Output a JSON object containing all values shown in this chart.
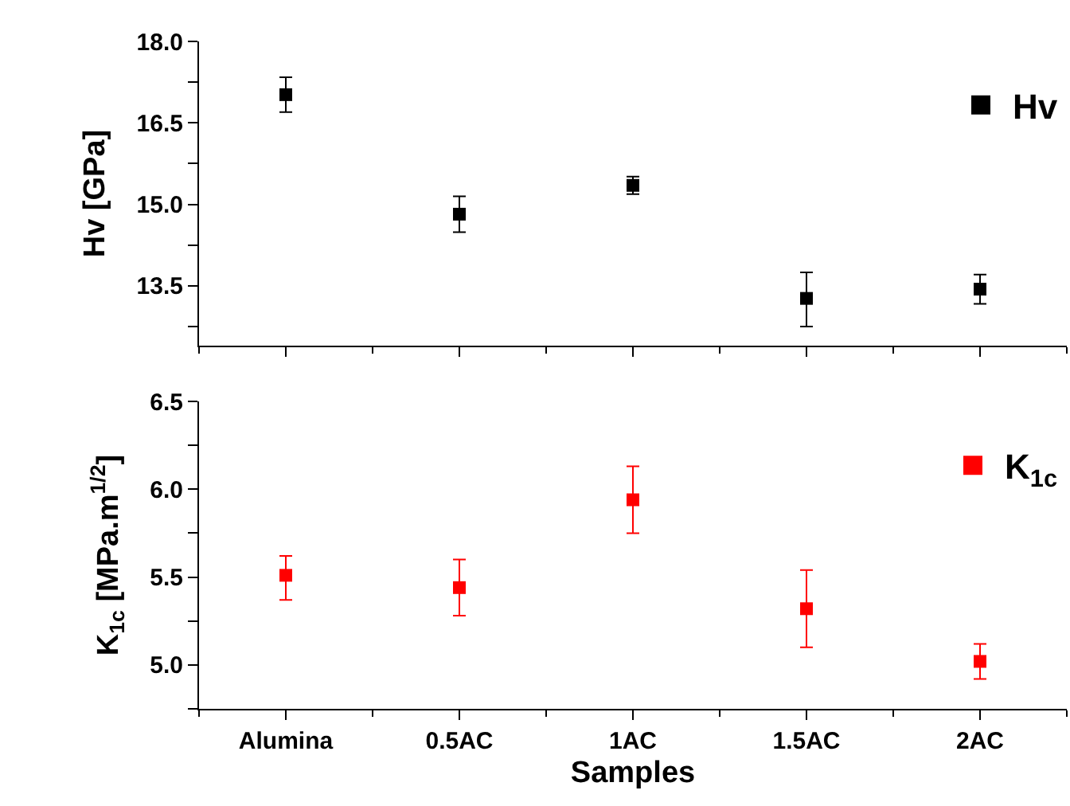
{
  "chart_data": [
    {
      "type": "scatter",
      "categories": [
        null,
        null,
        null,
        null,
        null
      ],
      "ylabel": "Hv [GPa]",
      "series": [
        {
          "name": "Hv",
          "color": "#000000",
          "values": [
            17.02,
            14.82,
            15.35,
            13.27,
            13.44
          ],
          "errors": [
            0.32,
            0.33,
            0.16,
            [
              12.75,
              13.75
            ],
            0.27
          ]
        }
      ],
      "ylim": [
        12.4,
        18.0
      ],
      "yticks": [
        {
          "value": 12.75,
          "label": null
        },
        13.5,
        {
          "value": 14.25,
          "label": null
        },
        {
          "value": 15,
          "label": "15.0"
        },
        {
          "value": 15.75,
          "label": null
        },
        16.5,
        {
          "value": 17.25,
          "label": null
        },
        {
          "value": 18,
          "label": "18.0"
        }
      ],
      "tick_labels": "y",
      "marker": "square",
      "legend": "top right",
      "grid": false
    },
    {
      "type": "scatter",
      "categories": [
        "Alumina",
        "0.5AC",
        "1AC",
        "1.5AC",
        "2AC"
      ],
      "xlabel": "Samples",
      "ylabel": "K$_{1c}$ [MPa.m$^{1/2}$]",
      "series": [
        {
          "name": "K$_{1c}$",
          "color": "#ff0000",
          "values": [
            5.51,
            5.44,
            5.94,
            5.32,
            5.02
          ],
          "errors": [
            [
              5.37,
              5.62
            ],
            0.16,
            [
              5.75,
              6.13
            ],
            [
              5.1,
              5.54
            ],
            0.1
          ]
        }
      ],
      "ylim": [
        4.75,
        6.5
      ],
      "yticks": [
        {
          "value": 4.75,
          "label": null
        },
        {
          "value": 5,
          "label": "5.0"
        },
        {
          "value": 5.25,
          "label": null
        },
        5.5,
        {
          "value": 5.75,
          "label": null
        },
        {
          "value": 6,
          "label": "6.0"
        },
        {
          "value": 6.25,
          "label": null
        },
        6.5
      ],
      "marker": "square",
      "legend": "top right",
      "grid": false
    }
  ]
}
